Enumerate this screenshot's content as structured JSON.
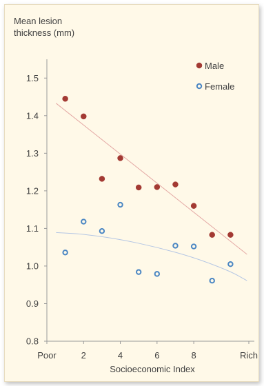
{
  "chart_data": {
    "type": "scatter",
    "title": "",
    "ylabel": "Mean lesion thickness (mm)",
    "ylabel_lines": [
      "Mean lesion",
      "thickness (mm)"
    ],
    "xlabel": "Socioeconomic Index",
    "xlim": [
      0,
      11.3
    ],
    "ylim": [
      0.8,
      1.55
    ],
    "x_ticks": [
      {
        "value": 0,
        "label": "Poor"
      },
      {
        "value": 2,
        "label": "2"
      },
      {
        "value": 4,
        "label": "4"
      },
      {
        "value": 6,
        "label": "6"
      },
      {
        "value": 8,
        "label": "8"
      },
      {
        "value": 11,
        "label": "Rich"
      }
    ],
    "y_ticks": [
      {
        "value": 0.8,
        "label": "0.8"
      },
      {
        "value": 0.9,
        "label": "0.9"
      },
      {
        "value": 1.0,
        "label": "1.0"
      },
      {
        "value": 1.1,
        "label": "1.1"
      },
      {
        "value": 1.2,
        "label": "1.2"
      },
      {
        "value": 1.3,
        "label": "1.3"
      },
      {
        "value": 1.4,
        "label": "1.4"
      },
      {
        "value": 1.5,
        "label": "1.5"
      }
    ],
    "grid": false,
    "legend_position": "top-right",
    "series": [
      {
        "name": "Male",
        "marker": "filled-circle",
        "color": "#a33a33",
        "x": [
          1,
          2,
          3,
          4,
          5,
          6,
          7,
          8,
          9,
          10
        ],
        "y": [
          1.445,
          1.398,
          1.232,
          1.287,
          1.209,
          1.21,
          1.217,
          1.16,
          1.083,
          1.083
        ],
        "trend": {
          "kind": "linear",
          "color": "#e3a7a3",
          "x": [
            0.5,
            10.9
          ],
          "y": [
            1.433,
            1.031
          ]
        }
      },
      {
        "name": "Female",
        "marker": "open-circle",
        "color": "#4a86c3",
        "x": [
          1,
          2,
          3,
          4,
          5,
          6,
          7,
          8,
          9,
          10
        ],
        "y": [
          1.036,
          1.118,
          1.093,
          1.163,
          0.984,
          0.979,
          1.054,
          1.052,
          0.961,
          1.005
        ],
        "trend": {
          "kind": "curve",
          "color": "#b4c6e4",
          "x": [
            0.5,
            2,
            4,
            6,
            8,
            10,
            10.9
          ],
          "y": [
            1.089,
            1.085,
            1.071,
            1.05,
            1.023,
            0.986,
            0.961
          ]
        }
      }
    ]
  }
}
